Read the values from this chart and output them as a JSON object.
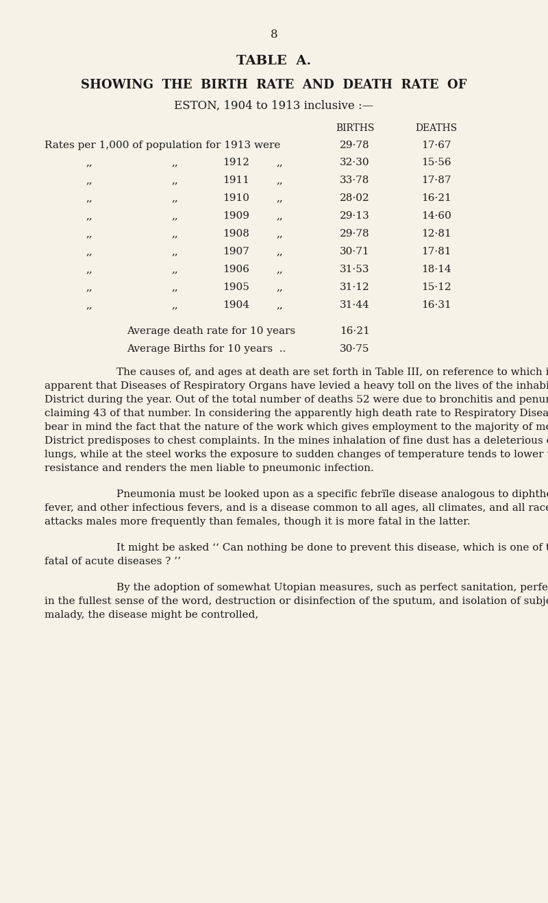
{
  "bg_color": "#f7f2e8",
  "text_color": "#1a1a1a",
  "page_number": "8",
  "title1": "TABLE  A.",
  "title2": "SHOWING  THE  BIRTH  RATE  AND  DEATH  RATE  OF",
  "title3": "ESTON, 1904 to 1913 inclusive :—",
  "col_births": "BIRTHS",
  "col_deaths": "DEATHS",
  "rows": [
    {
      "year": "1913",
      "label": "Rates per 1,000 of population for 1913 were",
      "births": "29·78",
      "deaths": "17·67",
      "first": true
    },
    {
      "year": "1912",
      "births": "32·30",
      "deaths": "15·56"
    },
    {
      "year": "1911",
      "births": "33·78",
      "deaths": "17·87"
    },
    {
      "year": "1910",
      "births": "28·02",
      "deaths": "16·21"
    },
    {
      "year": "1909",
      "births": "29·13",
      "deaths": "14·60"
    },
    {
      "year": "1908",
      "births": "29·78",
      "deaths": "12·81"
    },
    {
      "year": "1907",
      "births": "30·71",
      "deaths": "17·81"
    },
    {
      "year": "1906",
      "births": "31·53",
      "deaths": "18·14"
    },
    {
      "year": "1905",
      "births": "31·12",
      "deaths": "15·12"
    },
    {
      "year": "1904",
      "births": "31·44",
      "deaths": "16·31"
    }
  ],
  "avg_death_label": "Average death rate for 10 years",
  "avg_death_val": "16·21",
  "avg_birth_label": "Average Births for 10 years  ..",
  "avg_birth_val": "30·75",
  "para1": "The causes of, and ages at death are set forth in Table III, on reference to which it will be apparent that Diseases of Respiratory Organs have levied a heavy toll on the lives of the inhabitants of this District during the year.   Out of the total number of deaths 52 were due to bronchitis and penumonia. Pneumonia claiming 43 of that number.   In considering the apparently high death rate to Respiratory Diseases, we must bear in mind the fact that the nature of the work which gives employment to the majority of men in this District predisposes to chest complaints.   In the mines inhalation of fine dust has a deleterious effect on the lungs, while at the steel works the exposure to sudden changes of temperature tends to lower the powers of resistance and renders the men liable to pneumonic infection.",
  "para2": "Pneumonia must  be  looked  upon  as  a  specific  febrïle disease analogous  to  diphtheria,  enteric  fever,  and  other infectious fevers, and is a disease common to all ages, all climates, and all races.   It attacks males more frequently than females, though it is more fatal in the latter.",
  "para3": "It might be asked ‘‘ Can nothing be done to prevent this disease, which is one of the most fatal of acute diseases ? ’’",
  "para4": "By the adoption of somewhat Utopian measures, such as perfect sanitation, perfect cleanliness in the fullest sense of the word, destruction or disinfection of the sputum, and isolation of subjects of this malady, the disease might be controlled,"
}
